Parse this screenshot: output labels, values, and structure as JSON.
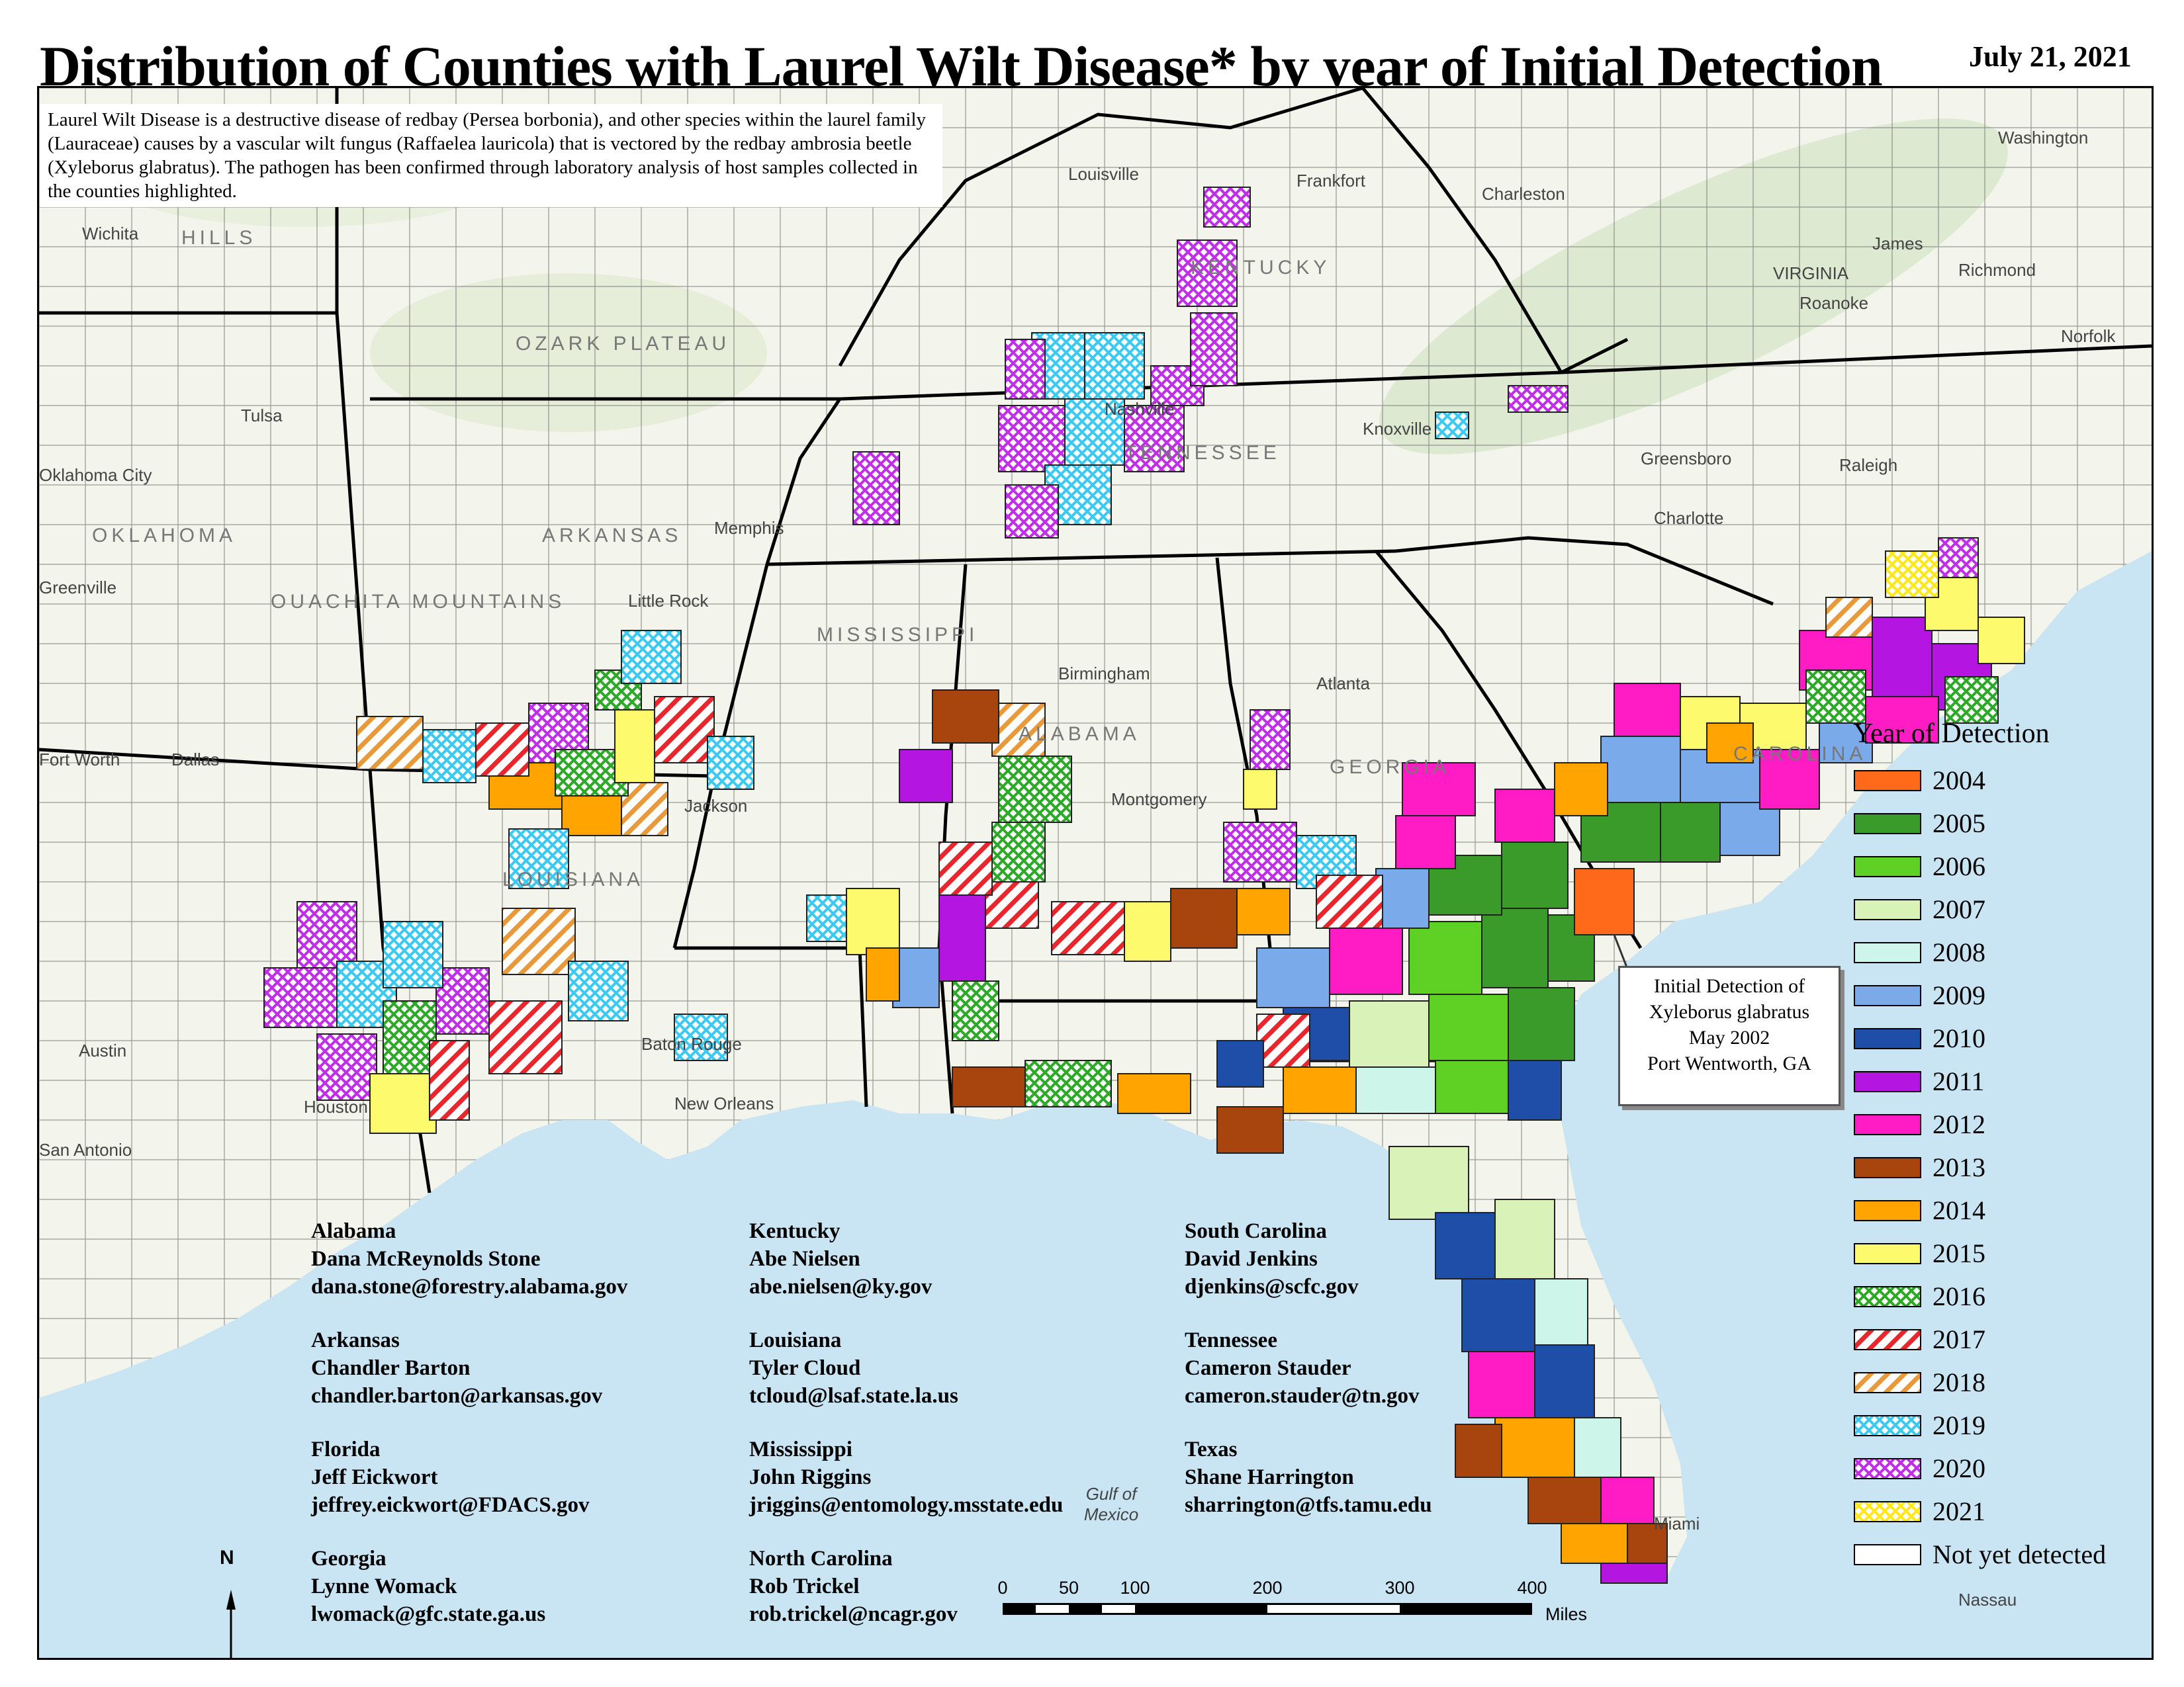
{
  "title": "Distribution of Counties with Laurel Wilt Disease* by year of Initial Detection",
  "date": "July 21, 2021",
  "description": "Laurel Wilt Disease is a destructive disease of redbay (Persea borbonia), and other species within the laurel family (Lauraceae) causes by a vascular wilt fungus (Raffaelea lauricola) that is vectored by the redbay ambrosia beetle (Xyleborus glabratus). The pathogen has been confirmed through laboratory analysis of host samples collected in the counties highlighted.",
  "callout": {
    "line1": "Initial Detection of",
    "line2": "Xyleborus glabratus",
    "line3": "May 2002",
    "line4": "Port Wentworth, GA"
  },
  "legend": {
    "title": "Year of Detection",
    "items": [
      {
        "label": "2004",
        "color": "#ff6a1a",
        "pattern": "solid"
      },
      {
        "label": "2005",
        "color": "#3a9a2a",
        "pattern": "solid"
      },
      {
        "label": "2006",
        "color": "#5fd125",
        "pattern": "solid"
      },
      {
        "label": "2007",
        "color": "#d9f2b8",
        "pattern": "solid"
      },
      {
        "label": "2008",
        "color": "#cdf5ea",
        "pattern": "solid"
      },
      {
        "label": "2009",
        "color": "#7aaaea",
        "pattern": "solid"
      },
      {
        "label": "2010",
        "color": "#1e4ea8",
        "pattern": "solid"
      },
      {
        "label": "2011",
        "color": "#b515e0",
        "pattern": "solid"
      },
      {
        "label": "2012",
        "color": "#ff1cc4",
        "pattern": "solid"
      },
      {
        "label": "2013",
        "color": "#a8450f",
        "pattern": "solid"
      },
      {
        "label": "2014",
        "color": "#ffa400",
        "pattern": "solid"
      },
      {
        "label": "2015",
        "color": "#fdfa6e",
        "pattern": "solid"
      },
      {
        "label": "2016",
        "color": "#2ea828",
        "pattern": "cross"
      },
      {
        "label": "2017",
        "color": "#e8262c",
        "pattern": "diag"
      },
      {
        "label": "2018",
        "color": "#e89a3a",
        "pattern": "diag"
      },
      {
        "label": "2019",
        "color": "#3ccaf0",
        "pattern": "cross"
      },
      {
        "label": "2020",
        "color": "#c02ee8",
        "pattern": "cross"
      },
      {
        "label": "2021",
        "color": "#fff23a",
        "pattern": "cross"
      },
      {
        "label": "Not yet detected",
        "color": "#ffffff",
        "pattern": "none"
      }
    ]
  },
  "contacts": [
    {
      "state": "Alabama",
      "person": "Dana McReynolds Stone",
      "email": "dana.stone@forestry.alabama.gov"
    },
    {
      "state": "Arkansas",
      "person": "Chandler Barton",
      "email": "chandler.barton@arkansas.gov"
    },
    {
      "state": "Florida",
      "person": "Jeff Eickwort",
      "email": "jeffrey.eickwort@FDACS.gov"
    },
    {
      "state": "Georgia",
      "person": "Lynne Womack",
      "email": "lwomack@gfc.state.ga.us"
    },
    {
      "state": "Kentucky",
      "person": "Abe Nielsen",
      "email": "abe.nielsen@ky.gov"
    },
    {
      "state": "Louisiana",
      "person": "Tyler Cloud",
      "email": "tcloud@lsaf.state.la.us"
    },
    {
      "state": "Mississippi",
      "person": "John Riggins",
      "email": "jriggins@entomology.msstate.edu"
    },
    {
      "state": "North Carolina",
      "person": "Rob Trickel",
      "email": "rob.trickel@ncagr.gov"
    },
    {
      "state": "South Carolina",
      "person": "David Jenkins",
      "email": "djenkins@scfc.gov"
    },
    {
      "state": "Tennessee",
      "person": "Cameron Stauder",
      "email": "cameron.stauder@tn.gov"
    },
    {
      "state": "Texas",
      "person": "Shane Harrington",
      "email": "sharrington@tfs.tamu.edu"
    }
  ],
  "scale": {
    "ticks": [
      "0",
      "50",
      "100",
      "200",
      "300",
      "400"
    ],
    "units": "Miles"
  },
  "north_label": "N",
  "places": {
    "louisville": "Louisville",
    "frankfort": "Frankfort",
    "charleston_wv": "Charleston",
    "washington": "Washington",
    "richmond": "Richmond",
    "norfolk": "Norfolk",
    "virginia": "VIRGINIA",
    "wichita": "Wichita",
    "tulsa": "Tulsa",
    "oklahoma_city": "Oklahoma City",
    "oklahoma": "OKLAHOMA",
    "nashville": "Nashville",
    "knoxville": "Knoxville",
    "greensboro": "Greensboro",
    "raleigh": "Raleigh",
    "charlotte": "Charlotte",
    "memphis": "Memphis",
    "little_rock": "Little Rock",
    "greenville": "Greenville",
    "birmingham": "Birmingham",
    "atlanta": "Atlanta",
    "fort_worth": "Fort Worth",
    "dallas": "Dallas",
    "jackson": "Jackson",
    "montgomery": "Montgomery",
    "austin": "Austin",
    "houston": "Houston",
    "san_antonio": "San Antonio",
    "baton_rouge": "Baton Rouge",
    "new_orleans": "New Orleans",
    "miami": "Miami",
    "nassau": "Nassau",
    "gulf": "Gulf of Mexico",
    "hills": "HILLS",
    "ozark": "OZARK PLATEAU",
    "ouachita": "OUACHITA MOUNTAINS",
    "arkansas": "ARKANSAS",
    "mississippi": "MISSISSIPPI",
    "louisiana": "LOUISIANA",
    "kentucky": "KENTUCKY",
    "tennessee": "TENNESSEE",
    "alabama": "ALABAMA",
    "georgia": "GEORGIA",
    "carolina": "CAROLINA",
    "james": "James",
    "roanoke": "Roanoke"
  }
}
